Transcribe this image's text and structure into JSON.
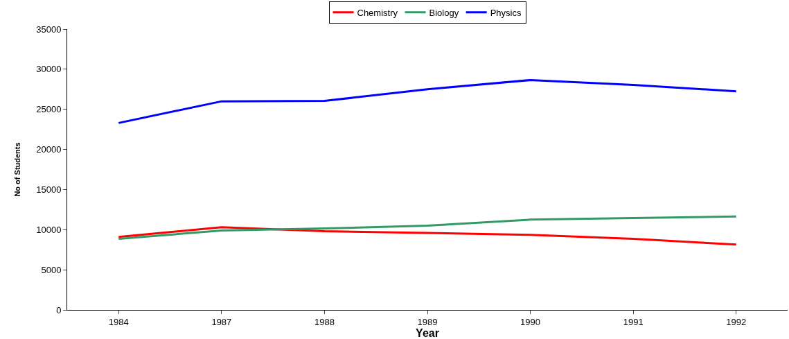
{
  "chart_data": {
    "type": "line",
    "xlabel": "Year",
    "ylabel": "No of Students",
    "categories": [
      "1984",
      "1987",
      "1988",
      "1989",
      "1990",
      "1991",
      "1992"
    ],
    "series": [
      {
        "name": "Chemistry",
        "color": "#ff0000",
        "values": [
          9100,
          10300,
          9800,
          9600,
          9350,
          8850,
          8150
        ]
      },
      {
        "name": "Biology",
        "color": "#339966",
        "values": [
          8850,
          9900,
          10150,
          10500,
          11250,
          11450,
          11650
        ]
      },
      {
        "name": "Physics",
        "color": "#0000ff",
        "values": [
          23300,
          26000,
          26050,
          27500,
          28650,
          28050,
          27250
        ]
      }
    ],
    "ylim": [
      0,
      35000
    ],
    "yticks": [
      0,
      5000,
      10000,
      15000,
      20000,
      25000,
      30000,
      35000
    ],
    "grid": false,
    "legend": "top",
    "marker": "none",
    "line_style": "solid"
  }
}
